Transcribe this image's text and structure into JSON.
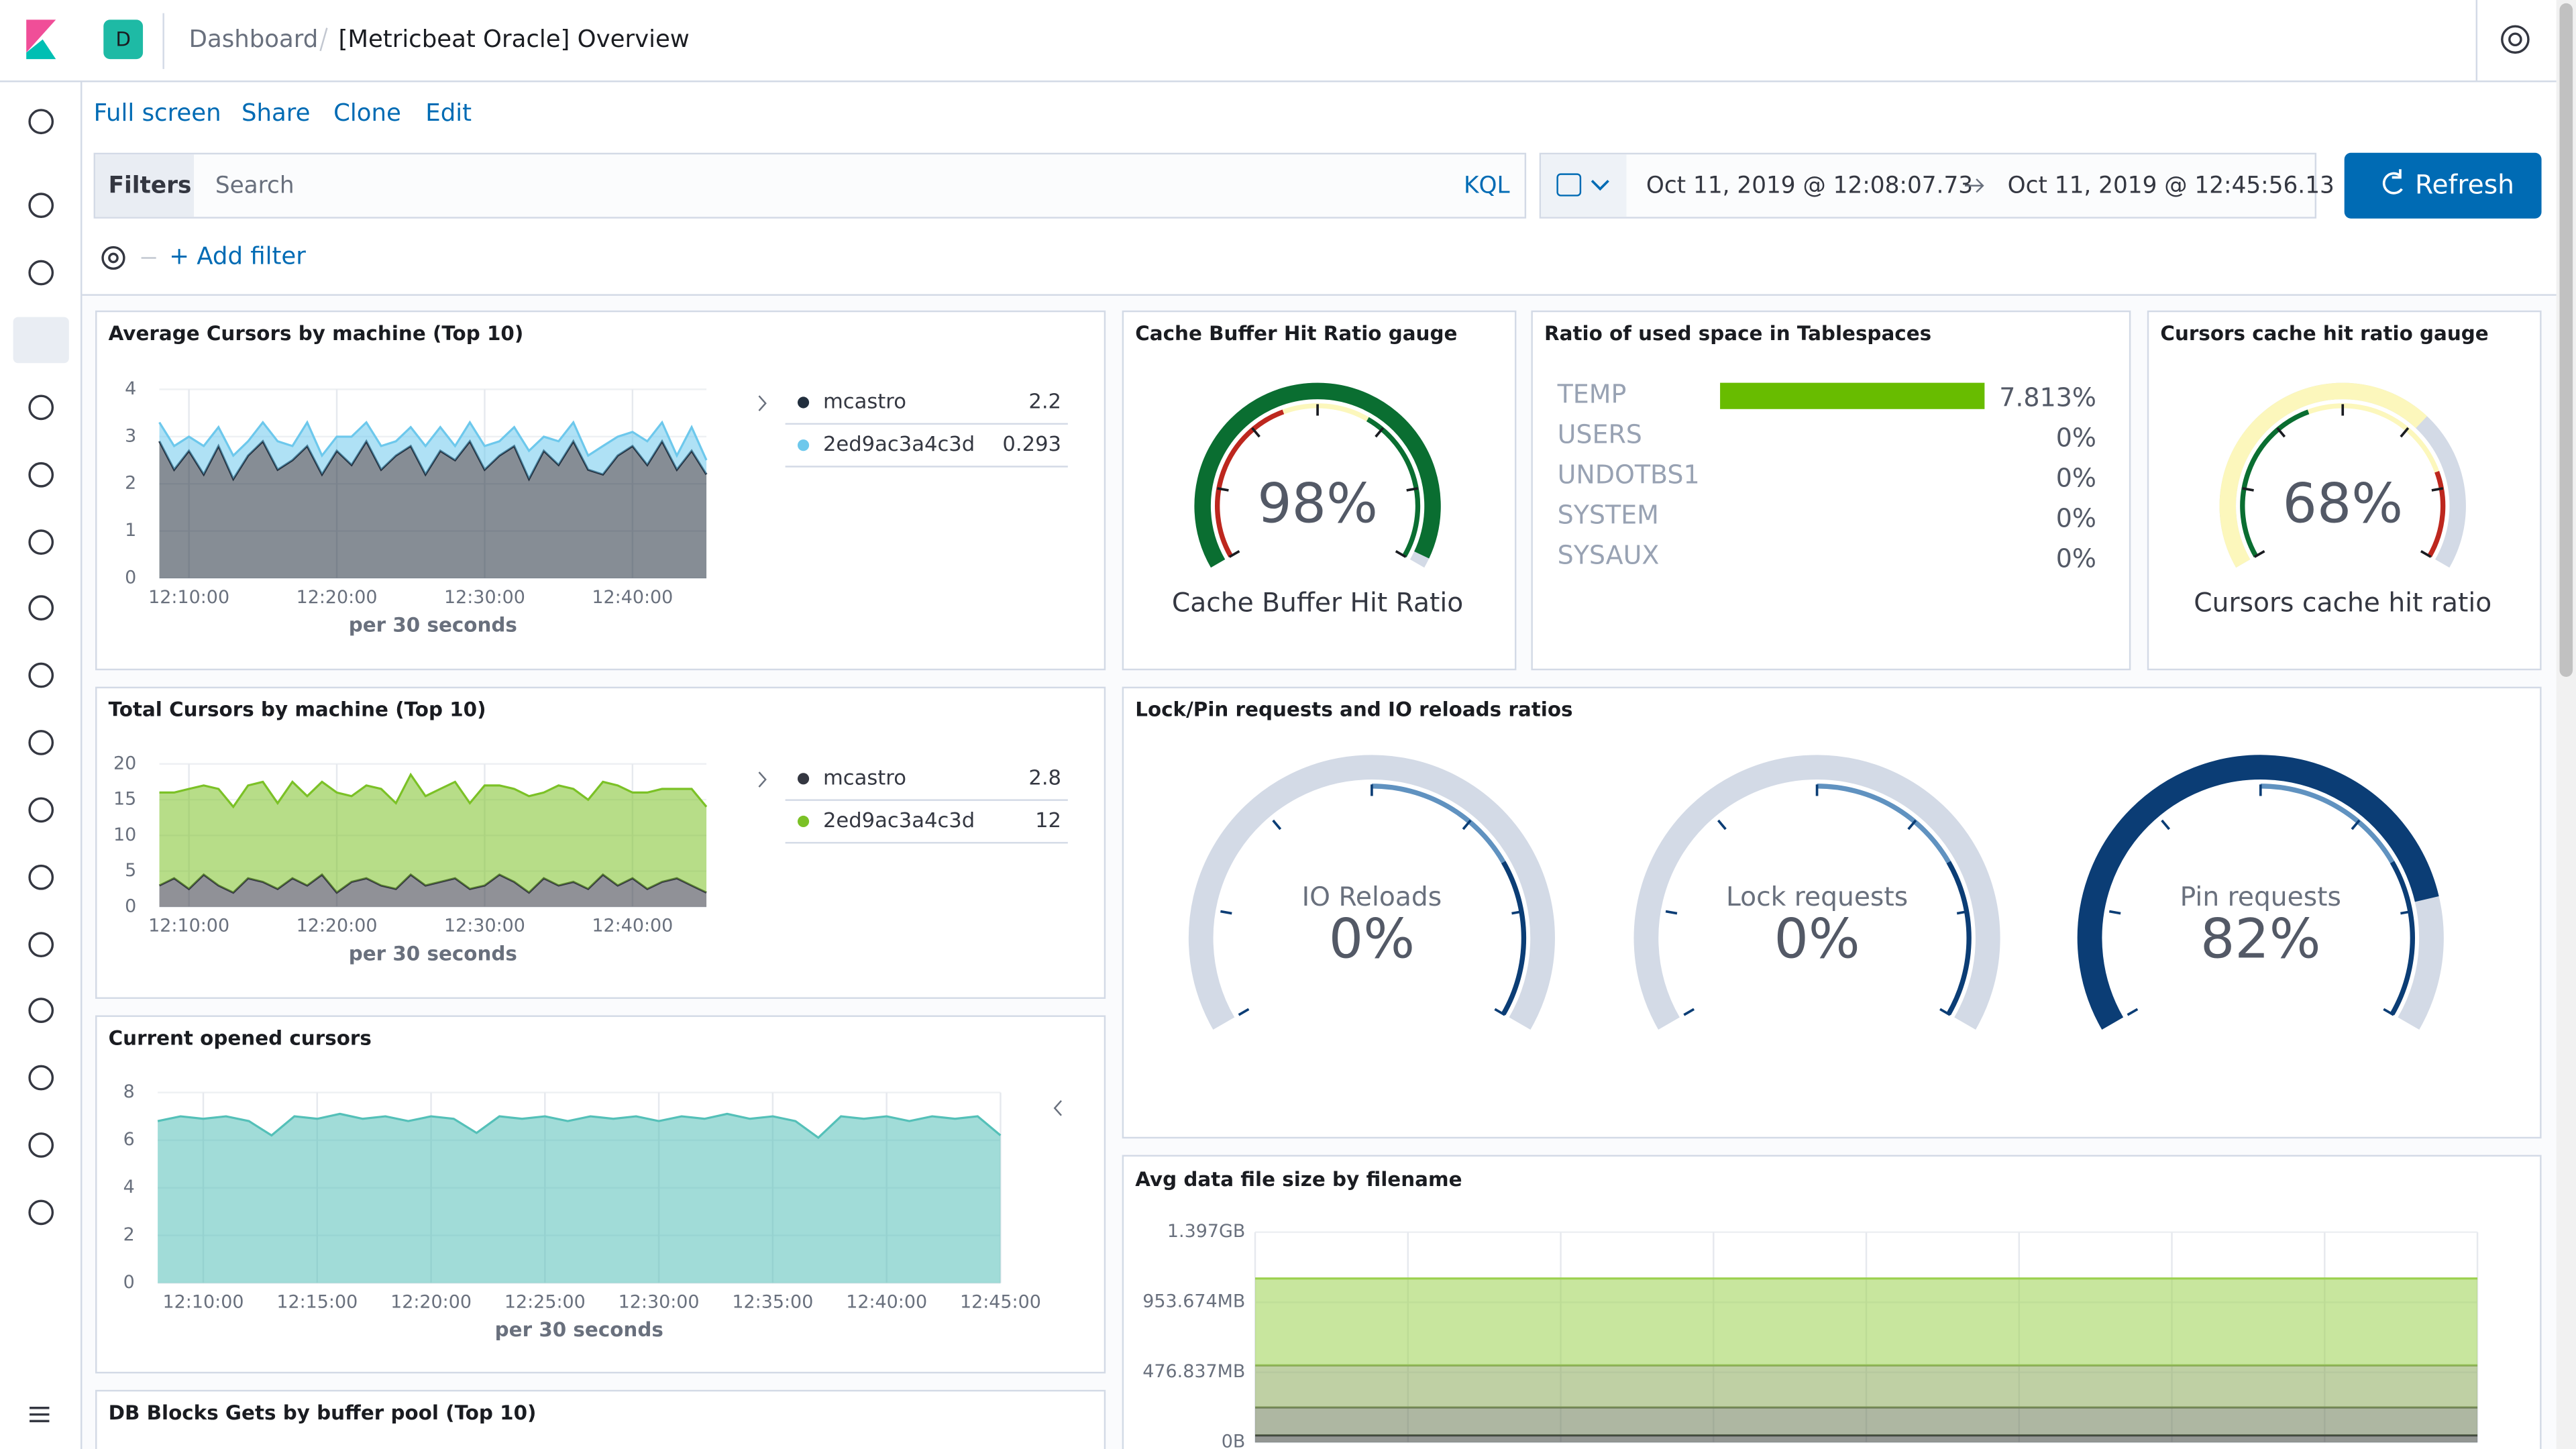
{
  "header": {
    "space": "D",
    "breadcrumb": [
      "Dashboard",
      "[Metricbeat Oracle] Overview"
    ]
  },
  "menu": [
    "Full screen",
    "Share",
    "Clone",
    "Edit"
  ],
  "query": {
    "label": "Filters",
    "placeholder": "Search",
    "language": "KQL",
    "start": "Oct 11, 2019 @ 12:08:07.73",
    "end": "Oct 11, 2019 @ 12:45:56.13",
    "refresh": "Refresh",
    "add_filter": "+ Add filter"
  },
  "other_panels": [
    {
      "title": "DB Blocks Gets by buffer pool (Top 10)"
    }
  ],
  "chart_data": [
    {
      "type": "area",
      "stacked": true,
      "title": "Average Cursors by machine (Top 10)",
      "x_label": "per 30 seconds",
      "grid": true,
      "xlim": [
        8,
        45
      ],
      "ylim": [
        0,
        4
      ],
      "yticks": [
        0,
        1,
        2,
        3,
        4
      ],
      "xticks": [
        {
          "value": 10,
          "label": "12:10:00"
        },
        {
          "value": 20,
          "label": "12:20:00"
        },
        {
          "value": 30,
          "label": "12:30:00"
        },
        {
          "value": 40,
          "label": "12:40:00"
        }
      ],
      "x": [
        8,
        9,
        10,
        11,
        12,
        13,
        14,
        15,
        16,
        17,
        18,
        19,
        20,
        21,
        22,
        23,
        24,
        25,
        26,
        27,
        28,
        29,
        30,
        31,
        32,
        33,
        34,
        35,
        36,
        37,
        38,
        39,
        40,
        41,
        42,
        43,
        44,
        45
      ],
      "series": [
        {
          "name": "mcastro",
          "color": "#222f3e",
          "legend_value": 2.2,
          "values": [
            2.9,
            2.3,
            2.7,
            2.2,
            2.8,
            2.1,
            2.6,
            2.9,
            2.3,
            2.5,
            2.8,
            2.2,
            2.7,
            2.4,
            2.9,
            2.3,
            2.6,
            2.8,
            2.2,
            2.7,
            2.5,
            2.9,
            2.3,
            2.6,
            2.8,
            2.1,
            2.7,
            2.4,
            2.9,
            2.3,
            2.2,
            2.6,
            2.8,
            2.4,
            2.9,
            2.3,
            2.7,
            2.2
          ]
        },
        {
          "name": "2ed9ac3a4c3d",
          "color": "#6dc8ec",
          "legend_value": 0.293,
          "values": [
            0.4,
            0.5,
            0.3,
            0.6,
            0.4,
            0.5,
            0.3,
            0.4,
            0.6,
            0.3,
            0.5,
            0.4,
            0.3,
            0.6,
            0.4,
            0.5,
            0.3,
            0.4,
            0.6,
            0.5,
            0.3,
            0.4,
            0.5,
            0.3,
            0.4,
            0.6,
            0.3,
            0.5,
            0.4,
            0.3,
            0.6,
            0.4,
            0.3,
            0.5,
            0.4,
            0.3,
            0.5,
            0.3
          ]
        }
      ]
    },
    {
      "type": "area",
      "stacked": true,
      "title": "Total Cursors by machine (Top 10)",
      "x_label": "per 30 seconds",
      "grid": true,
      "xlim": [
        8,
        45
      ],
      "ylim": [
        0,
        20
      ],
      "yticks": [
        0,
        5,
        10,
        15,
        20
      ],
      "xticks": [
        {
          "value": 10,
          "label": "12:10:00"
        },
        {
          "value": 20,
          "label": "12:20:00"
        },
        {
          "value": 30,
          "label": "12:30:00"
        },
        {
          "value": 40,
          "label": "12:40:00"
        }
      ],
      "x": [
        8,
        9,
        10,
        11,
        12,
        13,
        14,
        15,
        16,
        17,
        18,
        19,
        20,
        21,
        22,
        23,
        24,
        25,
        26,
        27,
        28,
        29,
        30,
        31,
        32,
        33,
        34,
        35,
        36,
        37,
        38,
        39,
        40,
        41,
        42,
        43,
        44,
        45
      ],
      "series": [
        {
          "name": "mcastro",
          "color": "#343741",
          "legend_value": 2.8,
          "values": [
            3,
            4,
            2.5,
            4.5,
            3,
            2,
            4,
            3.5,
            2.5,
            4,
            3,
            4.5,
            2,
            3.5,
            4,
            3,
            2.5,
            4.5,
            3,
            3.5,
            4,
            2.5,
            3,
            4.5,
            3.5,
            2,
            4,
            3,
            3.5,
            2.5,
            4.5,
            3,
            4,
            2.5,
            3.5,
            4,
            3,
            2
          ]
        },
        {
          "name": "2ed9ac3a4c3d",
          "color": "#7bc126",
          "legend_value": 12,
          "values": [
            13,
            12,
            14,
            12.5,
            13.5,
            12,
            13,
            14,
            12,
            13.5,
            12.5,
            13,
            14,
            12,
            13,
            13.5,
            12,
            14,
            12.5,
            13,
            13.5,
            12,
            14,
            12.5,
            13,
            13.5,
            12,
            14,
            13,
            12.5,
            13,
            14,
            12,
            13.5,
            13,
            12.5,
            13.5,
            12
          ]
        }
      ]
    },
    {
      "type": "area",
      "stacked": true,
      "title": "Current opened cursors",
      "x_label": "per 30 seconds",
      "grid": true,
      "xlim": [
        8,
        45
      ],
      "ylim": [
        0,
        8
      ],
      "yticks": [
        0,
        2,
        4,
        6,
        8
      ],
      "xticks": [
        {
          "value": 10,
          "label": "12:10:00"
        },
        {
          "value": 15,
          "label": "12:15:00"
        },
        {
          "value": 20,
          "label": "12:20:00"
        },
        {
          "value": 25,
          "label": "12:25:00"
        },
        {
          "value": 30,
          "label": "12:30:00"
        },
        {
          "value": 35,
          "label": "12:35:00"
        },
        {
          "value": 40,
          "label": "12:40:00"
        },
        {
          "value": 45,
          "label": "12:45:00"
        }
      ],
      "x": [
        8,
        9,
        10,
        11,
        12,
        13,
        14,
        15,
        16,
        17,
        18,
        19,
        20,
        21,
        22,
        23,
        24,
        25,
        26,
        27,
        28,
        29,
        30,
        31,
        32,
        33,
        34,
        35,
        36,
        37,
        38,
        39,
        40,
        41,
        42,
        43,
        44,
        45
      ],
      "series": [
        {
          "color": "#54c0b8",
          "values": [
            6.8,
            7.0,
            6.9,
            7.0,
            6.8,
            6.2,
            7.0,
            6.9,
            7.1,
            6.9,
            7.0,
            6.8,
            7.0,
            6.9,
            6.3,
            7.0,
            6.9,
            7.0,
            6.8,
            7.0,
            6.9,
            7.0,
            6.8,
            7.0,
            6.9,
            7.1,
            6.9,
            7.0,
            6.8,
            6.1,
            7.0,
            6.9,
            7.0,
            6.8,
            7.0,
            6.9,
            7.0,
            6.2
          ]
        }
      ]
    },
    {
      "type": "gauge",
      "title": "Cache Buffer Hit Ratio gauge",
      "range": [
        0,
        100
      ],
      "color": "#0a6e31",
      "track_color": "#d3dae6",
      "categories": [
        "Cache Buffer Hit Ratio"
      ],
      "values": [
        98
      ],
      "value_labels": [
        "98%"
      ]
    },
    {
      "type": "bar",
      "title": "Ratio of used space in Tablespaces",
      "color": "#68bc00",
      "categories": [
        "TEMP",
        "USERS",
        "UNDOTBS1",
        "SYSTEM",
        "SYSAUX"
      ],
      "values": [
        7.813,
        0,
        0,
        0,
        0
      ],
      "value_labels": [
        "7.813%",
        "0%",
        "0%",
        "0%",
        "0%"
      ]
    },
    {
      "type": "gauge",
      "title": "Cursors cache hit ratio gauge",
      "range": [
        0,
        100
      ],
      "color": "#fcf7bc",
      "track_color": "#d3dae6",
      "categories": [
        "Cursors cache hit ratio"
      ],
      "values": [
        68
      ],
      "value_labels": [
        "68%"
      ]
    },
    {
      "type": "gauge",
      "title": "Lock/Pin requests and IO reloads ratios",
      "range": [
        0,
        100
      ],
      "color": "#0b3d75",
      "track_color": "#d3dae6",
      "categories": [
        "IO Reloads",
        "Lock requests",
        "Pin requests"
      ],
      "values": [
        0,
        0,
        82
      ],
      "value_labels": [
        "0%",
        "0%",
        "82%"
      ]
    },
    {
      "type": "area",
      "stacked": true,
      "title": "Avg data file size by filename",
      "grid": true,
      "ylim": [
        0,
        1500000000
      ],
      "yticks": [
        {
          "value": 0,
          "label": "0B"
        },
        {
          "value": 500000000,
          "label": "476.837MB"
        },
        {
          "value": 1000000000,
          "label": "953.674MB"
        },
        {
          "value": 1500000000,
          "label": "1.397GB"
        }
      ],
      "series": [
        {
          "color": "#3b3f3a",
          "values": [
            50000000,
            50000000,
            50000000,
            50000000,
            50000000,
            50000000,
            50000000,
            50000000
          ]
        },
        {
          "color": "#6b7b55",
          "values": [
            200000000,
            200000000,
            200000000,
            200000000,
            200000000,
            200000000,
            200000000,
            200000000
          ]
        },
        {
          "color": "#8aa95a",
          "values": [
            300000000,
            300000000,
            300000000,
            300000000,
            300000000,
            300000000,
            300000000,
            300000000
          ]
        },
        {
          "color": "#9bd14e",
          "values": [
            620000000,
            620000000,
            620000000,
            620000000,
            620000000,
            620000000,
            620000000,
            620000000
          ]
        }
      ]
    }
  ]
}
